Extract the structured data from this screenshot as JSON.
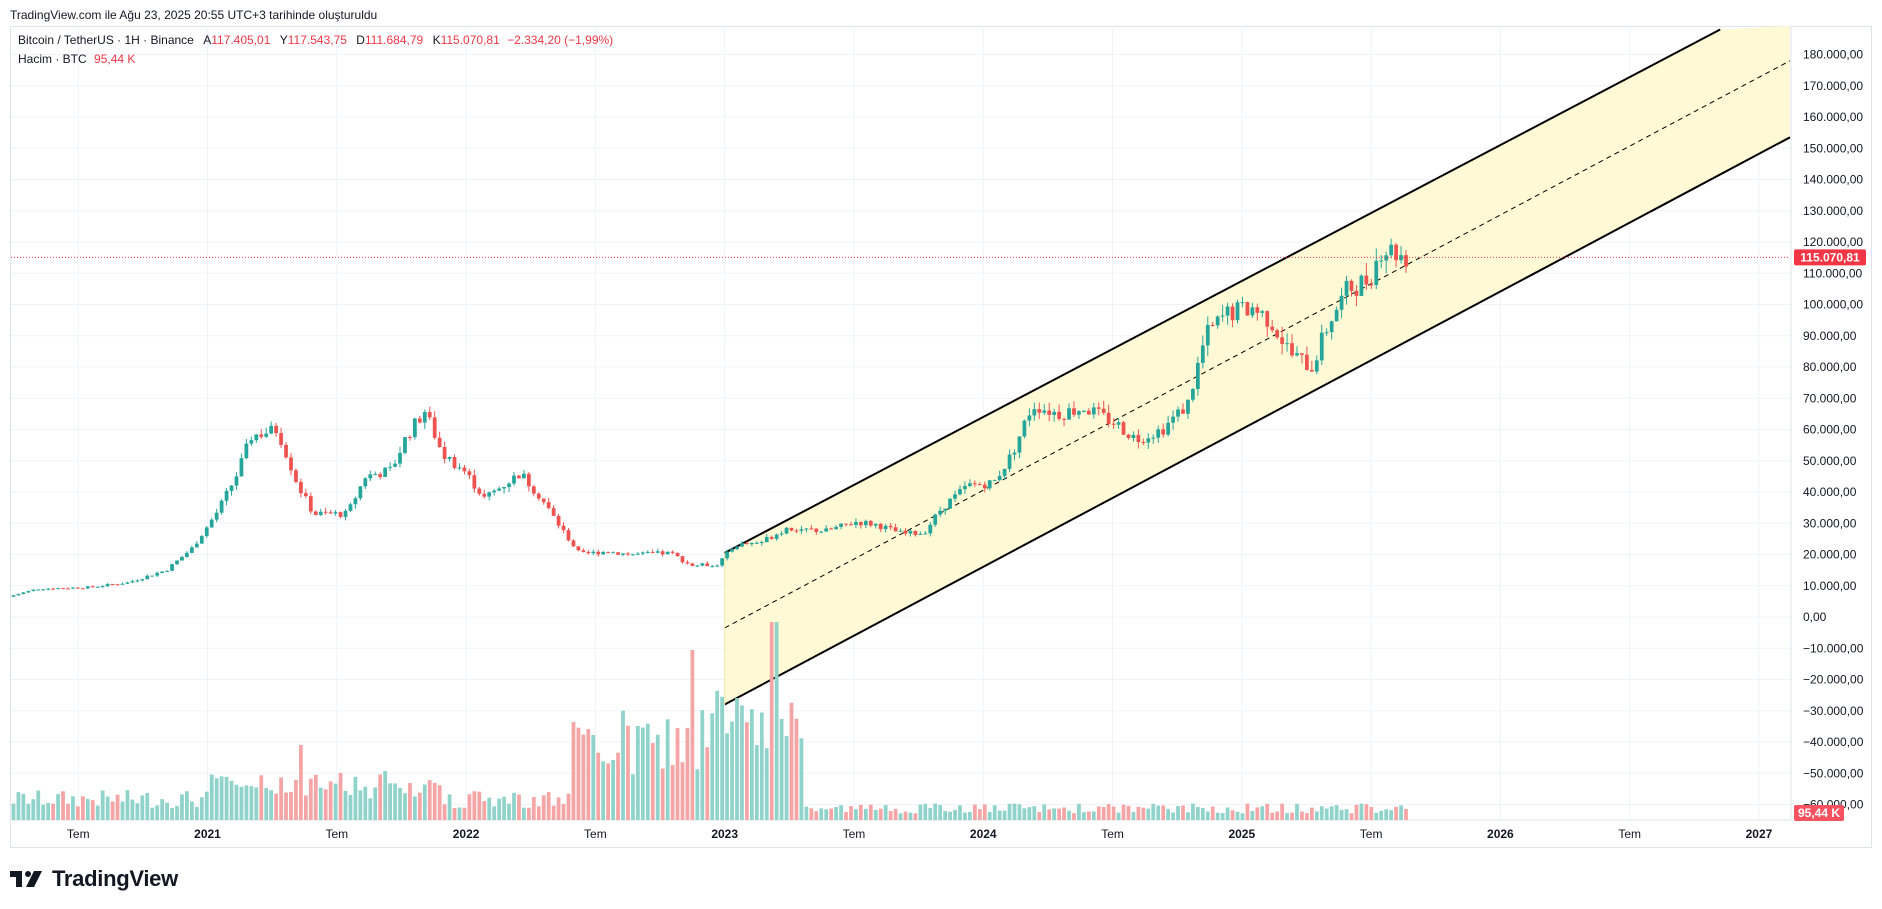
{
  "header": {
    "note": "TradingView.com ile Ağu 23, 2025 20:55 UTC+3 tarihinde oluşturuldu"
  },
  "legend": {
    "symbol": "Bitcoin / TetherUS · 1H · Binance",
    "o_key": "A",
    "o_val": "117.405,01",
    "h_key": "Y",
    "h_val": "117.543,75",
    "l_key": "D",
    "l_val": "111.684,79",
    "c_key": "K",
    "c_val": "115.070,81",
    "change": "−2.334,20 (−1,99%)",
    "volume_label": "Hacim · BTC",
    "volume_val": "95,44 K"
  },
  "footer": {
    "brand": "TradingView"
  },
  "colors": {
    "up": "#26a69a",
    "down": "#ef5350",
    "up_vol": "#8fd3cb",
    "down_vol": "#f5a5a5",
    "channel_fill": "#fff9d6",
    "price_label": "#f23645"
  },
  "chart_data": {
    "type": "candlestick",
    "title": "Bitcoin / TetherUS · 1H · Binance",
    "y_axis": {
      "ticks": [
        "180.000,00",
        "170.000,00",
        "160.000,00",
        "150.000,00",
        "140.000,00",
        "130.000,00",
        "120.000,00",
        "110.000,00",
        "100.000,00",
        "90.000,00",
        "80.000,00",
        "70.000,00",
        "60.000,00",
        "50.000,00",
        "40.000,00",
        "30.000,00",
        "20.000,00",
        "10.000,00",
        "0,00",
        "−10.000,00",
        "−20.000,00",
        "−30.000,00",
        "−40.000,00",
        "−50.000,00",
        "−60.000,00"
      ],
      "tick_values": [
        180000,
        170000,
        160000,
        150000,
        140000,
        130000,
        120000,
        110000,
        100000,
        90000,
        80000,
        70000,
        60000,
        50000,
        40000,
        30000,
        20000,
        10000,
        0,
        -10000,
        -20000,
        -30000,
        -40000,
        -50000,
        -60000
      ],
      "range": [
        -60000,
        190000
      ]
    },
    "x_axis": {
      "ticks": [
        {
          "label": "Tem",
          "t": 2020.5,
          "bold": false
        },
        {
          "label": "2021",
          "t": 2021.0,
          "bold": true
        },
        {
          "label": "Tem",
          "t": 2021.5,
          "bold": false
        },
        {
          "label": "2022",
          "t": 2022.0,
          "bold": true
        },
        {
          "label": "Tem",
          "t": 2022.5,
          "bold": false
        },
        {
          "label": "2023",
          "t": 2023.0,
          "bold": true
        },
        {
          "label": "Tem",
          "t": 2023.5,
          "bold": false
        },
        {
          "label": "2024",
          "t": 2024.0,
          "bold": true
        },
        {
          "label": "Tem",
          "t": 2024.5,
          "bold": false
        },
        {
          "label": "2025",
          "t": 2025.0,
          "bold": true
        },
        {
          "label": "Tem",
          "t": 2025.5,
          "bold": false
        },
        {
          "label": "2026",
          "t": 2026.0,
          "bold": true
        },
        {
          "label": "Tem",
          "t": 2026.5,
          "bold": false
        },
        {
          "label": "2027",
          "t": 2027.0,
          "bold": true
        }
      ],
      "range": [
        2020.24,
        2027.12
      ]
    },
    "last_price": {
      "value": 115070.81,
      "label": "115.070,81"
    },
    "volume_label": "95,44 K",
    "price_anchors": [
      [
        2020.24,
        6500
      ],
      [
        2020.35,
        9000
      ],
      [
        2020.55,
        9500
      ],
      [
        2020.7,
        11000
      ],
      [
        2020.85,
        15000
      ],
      [
        2020.95,
        22000
      ],
      [
        2021.05,
        34000
      ],
      [
        2021.12,
        45000
      ],
      [
        2021.18,
        58000
      ],
      [
        2021.28,
        60000
      ],
      [
        2021.36,
        42000
      ],
      [
        2021.42,
        33000
      ],
      [
        2021.55,
        33000
      ],
      [
        2021.62,
        45000
      ],
      [
        2021.72,
        47000
      ],
      [
        2021.78,
        58000
      ],
      [
        2021.85,
        66000
      ],
      [
        2021.92,
        52000
      ],
      [
        2022.0,
        47000
      ],
      [
        2022.08,
        38000
      ],
      [
        2022.15,
        42000
      ],
      [
        2022.22,
        46000
      ],
      [
        2022.3,
        38000
      ],
      [
        2022.38,
        28000
      ],
      [
        2022.45,
        20000
      ],
      [
        2022.55,
        21000
      ],
      [
        2022.65,
        20000
      ],
      [
        2022.8,
        20500
      ],
      [
        2022.88,
        16500
      ],
      [
        2022.98,
        16800
      ],
      [
        2023.05,
        23000
      ],
      [
        2023.15,
        24000
      ],
      [
        2023.25,
        28500
      ],
      [
        2023.4,
        27500
      ],
      [
        2023.52,
        30500
      ],
      [
        2023.6,
        29500
      ],
      [
        2023.7,
        26500
      ],
      [
        2023.78,
        27000
      ],
      [
        2023.85,
        35000
      ],
      [
        2023.95,
        42000
      ],
      [
        2024.05,
        43000
      ],
      [
        2024.12,
        52000
      ],
      [
        2024.2,
        68000
      ],
      [
        2024.3,
        65000
      ],
      [
        2024.4,
        67000
      ],
      [
        2024.52,
        62000
      ],
      [
        2024.6,
        57000
      ],
      [
        2024.7,
        60000
      ],
      [
        2024.8,
        68000
      ],
      [
        2024.87,
        90000
      ],
      [
        2024.95,
        97000
      ],
      [
        2025.05,
        99000
      ],
      [
        2025.12,
        95000
      ],
      [
        2025.2,
        84000
      ],
      [
        2025.28,
        80000
      ],
      [
        2025.35,
        95000
      ],
      [
        2025.42,
        105000
      ],
      [
        2025.5,
        108000
      ],
      [
        2025.55,
        118000
      ],
      [
        2025.6,
        117000
      ],
      [
        2025.64,
        115070
      ]
    ],
    "channel": {
      "upper": [
        [
          2023.0,
          20500
        ],
        [
          2026.85,
          188000
        ]
      ],
      "mid": [
        [
          2023.0,
          -3500
        ],
        [
          2027.12,
          178000
        ]
      ],
      "lower": [
        [
          2023.0,
          -28000
        ],
        [
          2027.12,
          153500
        ]
      ]
    }
  }
}
